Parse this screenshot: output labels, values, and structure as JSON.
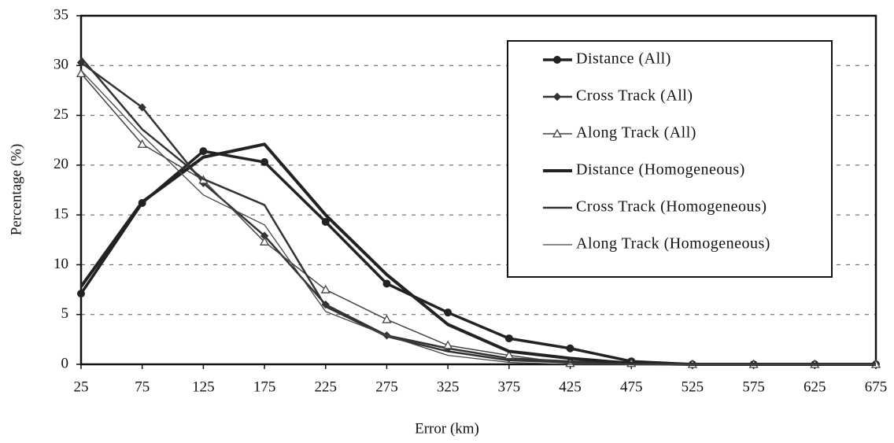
{
  "chart_data": {
    "type": "line",
    "x_label": "Error (km)",
    "y_label": "Percentage (%)",
    "x": [
      25,
      75,
      125,
      175,
      225,
      275,
      325,
      375,
      425,
      475,
      525,
      575,
      625,
      675
    ],
    "xlim": [
      25,
      675
    ],
    "xticks": [
      25,
      75,
      125,
      175,
      225,
      275,
      325,
      375,
      425,
      475,
      525,
      575,
      625,
      675
    ],
    "ylim": [
      0,
      35
    ],
    "yticks": [
      0,
      5,
      10,
      15,
      20,
      25,
      30,
      35
    ],
    "grid": true,
    "legend": "upper right",
    "series": [
      {
        "name": "Distance (All)",
        "color": "#222",
        "width": 3.5,
        "marker": "circle",
        "values": [
          7.1,
          16.2,
          21.4,
          20.3,
          14.3,
          8.1,
          5.2,
          2.6,
          1.6,
          0.3,
          0,
          0,
          0,
          0
        ]
      },
      {
        "name": "Cross Track (All)",
        "color": "#333",
        "width": 2.5,
        "marker": "diamond",
        "values": [
          30.3,
          25.8,
          18.2,
          12.9,
          6.0,
          2.9,
          1.6,
          0.6,
          0.3,
          0.1,
          0,
          0,
          0,
          0
        ]
      },
      {
        "name": "Along Track (All)",
        "color": "#444",
        "width": 1.5,
        "marker": "triangle",
        "values": [
          29.2,
          22.1,
          18.5,
          12.3,
          7.5,
          4.5,
          1.9,
          0.9,
          0.1,
          0.1,
          0,
          0,
          0,
          0
        ]
      },
      {
        "name": "Distance (Homogeneous)",
        "color": "#222",
        "width": 4,
        "marker": "none",
        "values": [
          7.8,
          16.3,
          20.8,
          22.1,
          15.0,
          9.0,
          4.0,
          1.3,
          0.6,
          0.1,
          0,
          0,
          0,
          0
        ]
      },
      {
        "name": "Cross Track (Homogeneous)",
        "color": "#333",
        "width": 2.5,
        "marker": "none",
        "values": [
          30.8,
          23.6,
          18.6,
          16.0,
          5.8,
          2.8,
          1.3,
          0.4,
          0.2,
          0,
          0,
          0,
          0,
          0
        ]
      },
      {
        "name": "Along Track (Homogeneous)",
        "color": "#444",
        "width": 1.3,
        "marker": "none",
        "values": [
          29.5,
          23.0,
          17.0,
          14.0,
          5.3,
          2.9,
          0.9,
          0.2,
          0,
          0,
          0,
          0,
          0,
          0
        ]
      }
    ]
  }
}
